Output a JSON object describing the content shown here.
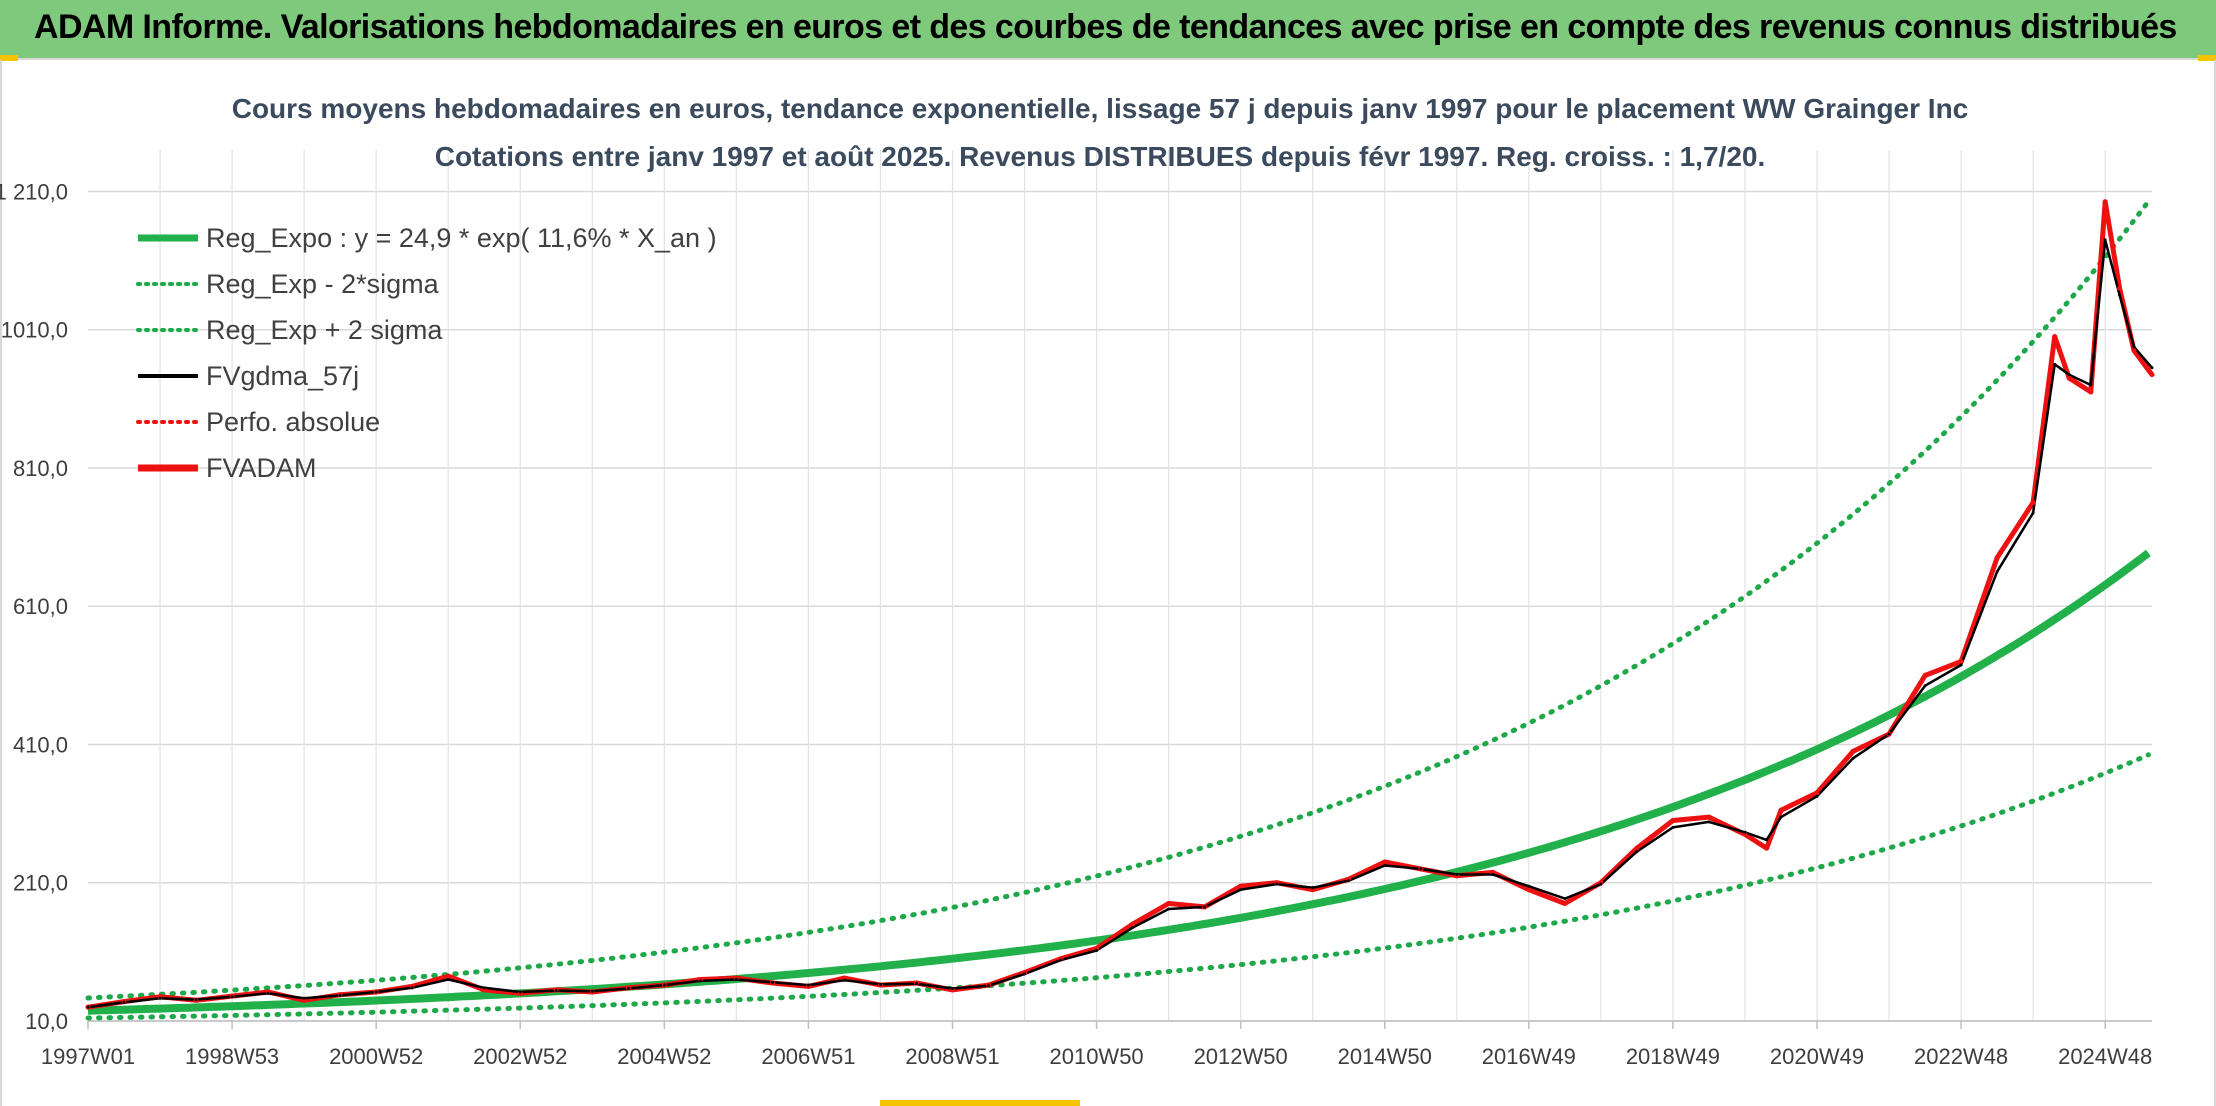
{
  "banner": {
    "title": "ADAM Informe. Valorisations hebdomadaires en euros et des courbes de tendances avec prise en compte des revenus connus distribués"
  },
  "colors": {
    "banner_bg": "#7ec97c",
    "green": "#22b04b",
    "dotted_green": "#1fa84a",
    "black": "#000000",
    "red": "#ee1111",
    "corner": "#f5c400"
  },
  "chart_data": {
    "type": "line",
    "title": "Cours moyens hebdomadaires en euros, tendance exponentielle, lissage 57 j depuis janv 1997 pour le placement WW Grainger Inc",
    "subtitle": "Cotations entre janv 1997 et août 2025. Revenus DISTRIBUES depuis févr 1997. Reg. croiss. : 1,7/20.",
    "ylim": [
      10,
      1270
    ],
    "y_ticks": [
      "10,0",
      "210,0",
      "410,0",
      "610,0",
      "810,0",
      "1010,0",
      "1 210,0"
    ],
    "y_tick_values": [
      10,
      210,
      410,
      610,
      810,
      1010,
      1210
    ],
    "x_range": [
      1997.0,
      2025.65
    ],
    "x_ticks": [
      "1997W01",
      "1998W53",
      "2000W52",
      "2002W52",
      "2004W52",
      "2006W51",
      "2008W51",
      "2010W50",
      "2012W50",
      "2014W50",
      "2016W49",
      "2018W49",
      "2020W49",
      "2022W48",
      "2024W48"
    ],
    "x_tick_values": [
      1997.0,
      1999.0,
      2001.0,
      2003.0,
      2005.0,
      2007.0,
      2009.0,
      2011.0,
      2013.0,
      2015.0,
      2017.0,
      2019.0,
      2021.0,
      2023.0,
      2025.0
    ],
    "legend_position": "top-left",
    "grid": true,
    "regression": {
      "a": 24.9,
      "rate": 0.116,
      "start": 1997.0,
      "sigma_factor": 1.74,
      "minus_factor": 0.575
    },
    "legend": [
      {
        "name": "Reg_Expo : y = 24,9 * exp( 11,6% *  X_an )",
        "color": "#22b04b",
        "style": "solid-thick"
      },
      {
        "name": "Reg_Exp - 2*sigma",
        "color": "#1fa84a",
        "style": "dotted"
      },
      {
        "name": "Reg_Exp + 2 sigma",
        "color": "#1fa84a",
        "style": "dotted"
      },
      {
        "name": "FVgdma_57j",
        "color": "#000000",
        "style": "solid"
      },
      {
        "name": "Perfo. absolue",
        "color": "#ee1111",
        "style": "dotted"
      },
      {
        "name": "FVADAM",
        "color": "#ee1111",
        "style": "solid-thick"
      }
    ],
    "series": [
      {
        "name": "FVADAM",
        "x": [
          1997.0,
          1997.5,
          1998.0,
          1998.5,
          1999.0,
          1999.5,
          2000.0,
          2000.5,
          2001.0,
          2001.5,
          2002.0,
          2002.5,
          2003.0,
          2003.5,
          2004.0,
          2004.5,
          2005.0,
          2005.5,
          2006.0,
          2006.5,
          2007.0,
          2007.5,
          2008.0,
          2008.5,
          2009.0,
          2009.5,
          2010.0,
          2010.5,
          2011.0,
          2011.5,
          2012.0,
          2012.5,
          2013.0,
          2013.5,
          2014.0,
          2014.5,
          2015.0,
          2015.5,
          2016.0,
          2016.5,
          2017.0,
          2017.5,
          2018.0,
          2018.5,
          2019.0,
          2019.5,
          2020.0,
          2020.3,
          2020.5,
          2021.0,
          2021.5,
          2022.0,
          2022.5,
          2023.0,
          2023.5,
          2024.0,
          2024.3,
          2024.5,
          2024.8,
          2025.0,
          2025.2,
          2025.4,
          2025.65
        ],
        "values": [
          30,
          38,
          45,
          40,
          46,
          52,
          40,
          48,
          52,
          60,
          75,
          55,
          50,
          55,
          52,
          58,
          62,
          70,
          72,
          65,
          60,
          72,
          62,
          65,
          55,
          62,
          80,
          100,
          115,
          150,
          180,
          175,
          205,
          210,
          200,
          215,
          240,
          230,
          220,
          225,
          200,
          180,
          210,
          260,
          300,
          305,
          280,
          260,
          315,
          340,
          400,
          425,
          510,
          530,
          680,
          760,
          1000,
          940,
          920,
          1195,
          1070,
          980,
          945
        ]
      },
      {
        "name": "FVgdma_57j",
        "x": [
          1997.0,
          1997.5,
          1998.0,
          1998.5,
          1999.0,
          1999.5,
          2000.0,
          2000.5,
          2001.0,
          2001.5,
          2002.0,
          2002.5,
          2003.0,
          2003.5,
          2004.0,
          2004.5,
          2005.0,
          2005.5,
          2006.0,
          2006.5,
          2007.0,
          2007.5,
          2008.0,
          2008.5,
          2009.0,
          2009.5,
          2010.0,
          2010.5,
          2011.0,
          2011.5,
          2012.0,
          2012.5,
          2013.0,
          2013.5,
          2014.0,
          2014.5,
          2015.0,
          2015.5,
          2016.0,
          2016.5,
          2017.0,
          2017.5,
          2018.0,
          2018.5,
          2019.0,
          2019.5,
          2020.0,
          2020.3,
          2020.5,
          2021.0,
          2021.5,
          2022.0,
          2022.5,
          2023.0,
          2023.5,
          2024.0,
          2024.3,
          2024.5,
          2024.8,
          2025.0,
          2025.2,
          2025.4,
          2025.65
        ],
        "values": [
          30,
          37,
          43,
          41,
          45,
          50,
          43,
          47,
          52,
          58,
          70,
          58,
          52,
          54,
          53,
          57,
          62,
          68,
          70,
          66,
          62,
          69,
          63,
          64,
          57,
          61,
          78,
          98,
          112,
          145,
          172,
          175,
          200,
          208,
          203,
          213,
          235,
          230,
          222,
          222,
          205,
          187,
          208,
          255,
          290,
          298,
          283,
          272,
          305,
          335,
          390,
          425,
          495,
          525,
          660,
          745,
          960,
          945,
          930,
          1140,
          1060,
          985,
          955
        ]
      }
    ]
  }
}
